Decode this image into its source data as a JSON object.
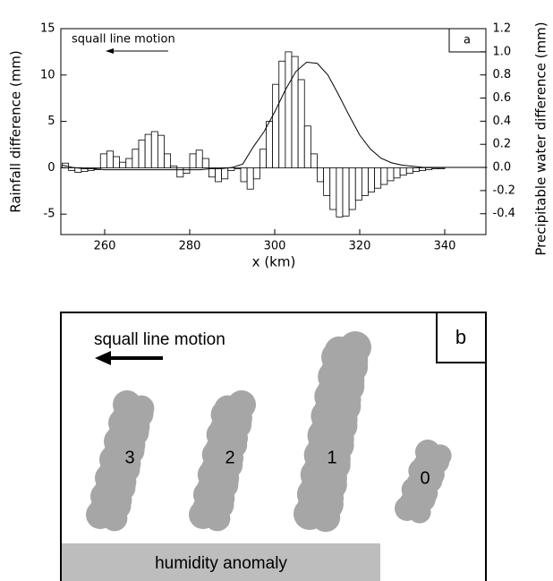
{
  "chart_data": {
    "type": "histogram",
    "annotation": "squall line motion",
    "panel_label": "a",
    "x_label": "x (km)",
    "y_label": "Rainfall difference (mm)",
    "y2_label": "Precipitable water difference (mm)",
    "bins": [
      250,
      251.5,
      253,
      254.5,
      256,
      257.5,
      259,
      260.5,
      262,
      263.5,
      265,
      266.5,
      268,
      269.5,
      271,
      272.5,
      274,
      275.5,
      277,
      278.5,
      280,
      281.5,
      283,
      284.5,
      286,
      287.5,
      289,
      290.5,
      292,
      293.5,
      295,
      296.5,
      298,
      299.5,
      301,
      302.5,
      304,
      305.5,
      307,
      308.5,
      310,
      311.5,
      313,
      314.5,
      316,
      317.5,
      319,
      320.5,
      322,
      323.5,
      325,
      326.5,
      328,
      329.5,
      331,
      332.5,
      334,
      335.5,
      337,
      338.5,
      340,
      341.5,
      343,
      344.5,
      346,
      347.5,
      349
    ],
    "values": [
      0.5,
      -0.3,
      -0.5,
      -0.4,
      -0.3,
      -0.2,
      1.5,
      1.8,
      1.2,
      0.6,
      1.0,
      2.0,
      3.0,
      3.6,
      3.9,
      3.5,
      1.5,
      0.2,
      -1.0,
      -0.6,
      1.5,
      1.9,
      1.0,
      -1.0,
      -1.5,
      -1.2,
      -0.3,
      -0.1,
      -1.5,
      -2.3,
      -1.2,
      2.0,
      5.0,
      9.0,
      11.5,
      12.5,
      12.0,
      9.5,
      4.5,
      1.5,
      -1.5,
      -3.0,
      -4.5,
      -5.3,
      -5.2,
      -4.5,
      -3.5,
      -3.0,
      -2.6,
      -2.2,
      -1.8,
      -1.4,
      -1.1,
      -0.8,
      -0.6,
      -0.4,
      -0.3,
      -0.2,
      -0.1,
      -0.1,
      0,
      0,
      0,
      0,
      0,
      0
    ],
    "color": "#ffffff",
    "series": [
      {
        "type": "line",
        "axis": "y2",
        "color": "#000000",
        "x": [
          250,
          252.5,
          255,
          257.5,
          260,
          262.5,
          265,
          267.5,
          270,
          272.5,
          275,
          277.5,
          280,
          282.5,
          285,
          287.5,
          290,
          292.5,
          295,
          297.5,
          300,
          302.5,
          305,
          307.5,
          310,
          312.5,
          315,
          317.5,
          320,
          322.5,
          325,
          327.5,
          330,
          332.5,
          335,
          337.5,
          340,
          342.5,
          345,
          347.5,
          350
        ],
        "values": [
          0.02,
          0.0,
          -0.01,
          -0.01,
          -0.02,
          -0.02,
          -0.02,
          -0.02,
          -0.02,
          -0.02,
          -0.02,
          -0.02,
          -0.02,
          -0.02,
          -0.01,
          -0.01,
          0.0,
          0.03,
          0.18,
          0.31,
          0.48,
          0.67,
          0.83,
          0.91,
          0.9,
          0.8,
          0.63,
          0.45,
          0.28,
          0.16,
          0.08,
          0.04,
          0.02,
          0.01,
          0,
          0,
          0,
          0,
          0,
          0,
          0
        ]
      }
    ],
    "xlim": [
      250,
      350
    ],
    "xticks": [
      260,
      280,
      300,
      320,
      340
    ],
    "ylim": [
      -7.2,
      15
    ],
    "yticks": [
      -5,
      0,
      5,
      10,
      15
    ],
    "y2lim": [
      -0.58,
      1.2
    ],
    "y2ticks": [
      -0.4,
      -0.2,
      {
        "value": 0,
        "label": "0.0"
      },
      0.2,
      0.4,
      0.6,
      0.8,
      {
        "value": 1,
        "label": "1.0"
      },
      1.2
    ]
  },
  "diagram": {
    "label": "b",
    "arrow_text": "squall line motion",
    "clouds": [
      "3",
      "2",
      "1",
      "0"
    ],
    "bar_text": "humidity anomaly"
  }
}
